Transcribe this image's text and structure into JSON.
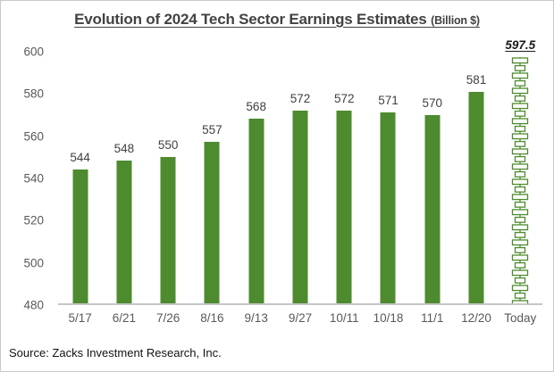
{
  "title": {
    "text": "Evolution of 2024 Tech Sector Earnings Estimates",
    "suffix": "(Billion $)"
  },
  "source": "Source: Zacks Investment Research, Inc.",
  "chart_data": {
    "type": "bar",
    "title": "Evolution of 2024 Tech Sector Earnings Estimates (Billion $)",
    "categories": [
      "5/17",
      "6/21",
      "7/26",
      "8/16",
      "9/13",
      "9/27",
      "10/11",
      "10/18",
      "11/1",
      "12/20",
      "Today"
    ],
    "values": [
      544,
      548,
      550,
      557,
      568,
      572,
      572,
      571,
      570,
      581,
      597.5
    ],
    "value_labels": [
      "544",
      "548",
      "550",
      "557",
      "568",
      "572",
      "572",
      "571",
      "570",
      "581",
      "597.5"
    ],
    "bar_styles": [
      "solid",
      "solid",
      "solid",
      "solid",
      "solid",
      "solid",
      "solid",
      "solid",
      "solid",
      "solid",
      "outline-chain"
    ],
    "xlabel": "",
    "ylabel": "",
    "ylim": [
      480,
      600
    ],
    "yticks": [
      480,
      500,
      520,
      540,
      560,
      580,
      600
    ],
    "grid": false,
    "legend": "none",
    "colors": {
      "bar": "#4e8b2f",
      "axis_line": "#c6c6c6",
      "tick_label": "#595959",
      "value_label": "#404040",
      "today_label": "#1a1a1a"
    }
  }
}
